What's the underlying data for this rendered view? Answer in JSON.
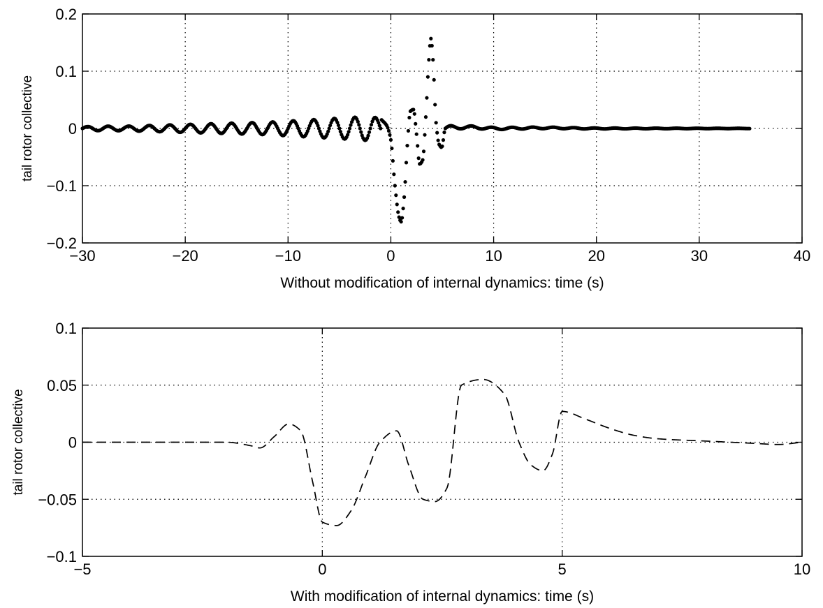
{
  "chart_data": [
    {
      "type": "scatter",
      "xlabel": "Without modification of internal dynamics: time (s)",
      "ylabel": "tail rotor collective",
      "xlim": [
        -30,
        40
      ],
      "ylim": [
        -0.2,
        0.2
      ],
      "xticks": [
        -30,
        -20,
        -10,
        0,
        10,
        20,
        30,
        40
      ],
      "yticks": [
        0.2,
        0.1,
        0,
        -0.1,
        -0.2
      ],
      "xtick_labels": [
        "−30",
        "−20",
        "−10",
        "0",
        "10",
        "20",
        "30",
        "40"
      ],
      "ytick_labels": [
        "0.2",
        "0.1",
        "0",
        "−0.1",
        "−0.2"
      ],
      "grid": true,
      "marker": "dots",
      "color": "#000000",
      "series": [
        {
          "x": [
            -30,
            -28,
            -26,
            -24,
            -22,
            -20,
            -18,
            -16,
            -14,
            -12,
            -10,
            -8,
            -6,
            -4,
            -2,
            -0.9,
            -0.4,
            0,
            0.4,
            0.8,
            1.0,
            1.3,
            1.6,
            1.9,
            2.2,
            2.5,
            2.8,
            3.1,
            3.4,
            3.7,
            3.9,
            4.1,
            4.4,
            4.7,
            4.95,
            5.3,
            6,
            8,
            10,
            15,
            20,
            25,
            30,
            35
          ],
          "y": [
            0.003,
            0.004,
            0.004,
            0.005,
            0.006,
            0.007,
            0.008,
            0.009,
            0.01,
            0.011,
            0.013,
            0.015,
            0.017,
            0.019,
            0.021,
            0.015,
            0.005,
            -0.02,
            -0.1,
            -0.155,
            -0.163,
            -0.12,
            -0.03,
            0.03,
            0.033,
            -0.01,
            -0.062,
            -0.055,
            0.02,
            0.12,
            0.157,
            0.12,
            0.01,
            -0.028,
            -0.033,
            0.0,
            0.002,
            0.002,
            0.0,
            0.001,
            0.0,
            0.0,
            0.0,
            0.0
          ],
          "oscillation_period_s": 2,
          "note_before_zero": "oscillating about 0 with growing amplitude"
        }
      ]
    },
    {
      "type": "line",
      "xlabel": "With modification of internal dynamics: time (s)",
      "ylabel": "tail rotor collective",
      "xlim": [
        -5,
        10
      ],
      "ylim": [
        -0.1,
        0.1
      ],
      "xticks": [
        -5,
        0,
        5,
        10
      ],
      "yticks": [
        0.1,
        0.05,
        0,
        -0.05,
        -0.1
      ],
      "xtick_labels": [
        "−5",
        "0",
        "5",
        "10"
      ],
      "ytick_labels": [
        "0.1",
        "0.05",
        "0",
        "−0.05",
        "−0.1"
      ],
      "grid": true,
      "line_style": "dashed",
      "color": "#000000",
      "series": [
        {
          "x": [
            -5,
            -4,
            -3,
            -2,
            -1.5,
            -1.3,
            -1.0,
            -0.7,
            -0.45,
            -0.2,
            0,
            0.3,
            0.6,
            0.9,
            1.2,
            1.55,
            1.8,
            2.1,
            2.35,
            2.6,
            2.9,
            3.35,
            3.8,
            4.1,
            4.35,
            4.6,
            4.8,
            5.0,
            5.5,
            6,
            6.5,
            7,
            8,
            9,
            9.5,
            10
          ],
          "y": [
            0,
            0,
            0,
            0,
            -0.003,
            -0.005,
            0.005,
            0.016,
            0.01,
            -0.035,
            -0.07,
            -0.073,
            -0.06,
            -0.03,
            0.0,
            0.01,
            -0.02,
            -0.05,
            -0.052,
            -0.04,
            0.05,
            0.055,
            0.042,
            0.0,
            -0.02,
            -0.025,
            -0.01,
            0.027,
            0.02,
            0.012,
            0.006,
            0.003,
            0.001,
            -0.001,
            -0.002,
            0.0
          ]
        }
      ]
    }
  ]
}
